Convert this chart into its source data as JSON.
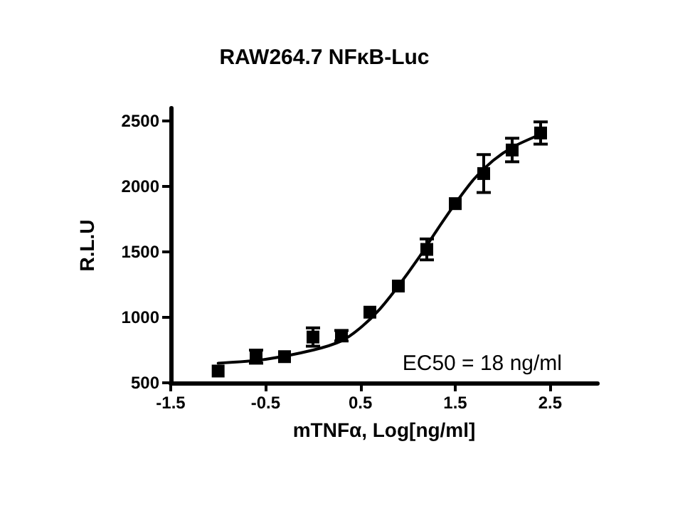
{
  "chart_data": {
    "type": "scatter",
    "title": "RAW264.7 NFκB-Luc",
    "xlabel": "mTNFα, Log[ng/ml]",
    "ylabel": "R.L.U",
    "xlim": [
      -1.5,
      3
    ],
    "xticks": [
      -1.5,
      -0.5,
      0.5,
      1.5,
      2.5
    ],
    "ylim": [
      500,
      2600
    ],
    "yticks": [
      500,
      1000,
      1500,
      2000,
      2500
    ],
    "grid": false,
    "marker": "square",
    "annotations": [
      "EC50 = 18 ng/ml"
    ],
    "series": [
      {
        "type": "scatter",
        "color": "#000000",
        "x": [
          -1,
          -0.6,
          -0.3,
          0,
          0.3,
          0.6,
          0.9,
          1.2,
          1.5,
          1.8,
          2.1,
          2.4
        ],
        "values": [
          590,
          700,
          700,
          850,
          860,
          1040,
          1240,
          1520,
          1870,
          2100,
          2280,
          2410
        ],
        "errors": [
          null,
          50,
          null,
          70,
          40,
          null,
          null,
          80,
          null,
          145,
          90,
          85
        ]
      },
      {
        "type": "line",
        "color": "#000000",
        "marker": "none",
        "line_style": "solid",
        "x": [
          -1,
          -0.5,
          0,
          0.3,
          0.5,
          0.7,
          0.9,
          1.1,
          1.3,
          1.5,
          1.7,
          1.9,
          2.1,
          2.4
        ],
        "values": [
          650,
          680,
          750,
          820,
          920,
          1060,
          1240,
          1440,
          1660,
          1870,
          2060,
          2200,
          2300,
          2400
        ]
      }
    ]
  }
}
